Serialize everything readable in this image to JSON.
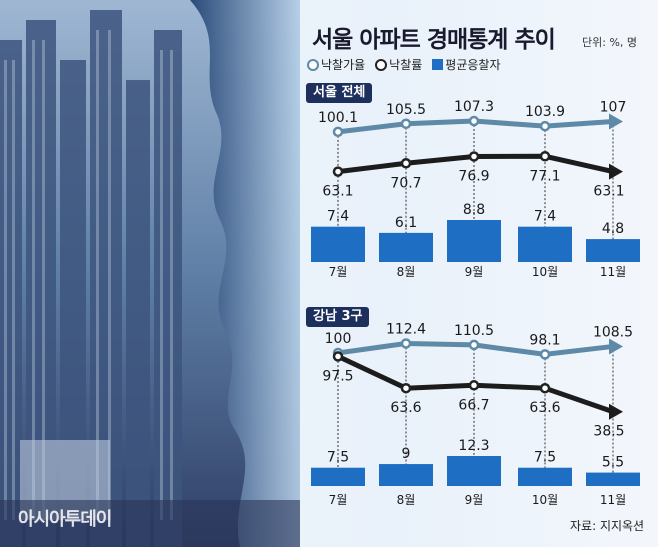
{
  "title": "서울 아파트 경매통계 추이",
  "unit": "단위: %, 명",
  "legend": {
    "sale_rate": "낙찰가율",
    "win_rate": "낙찰률",
    "bidders": "평균응찰자"
  },
  "source": "자료: 지지옥션",
  "logo": "아시아투데이",
  "colors": {
    "sale_rate": "#5e8aa8",
    "win_rate": "#1c1c1c",
    "bidders": "#1e6fc4",
    "label_bg": "#1d2f5c"
  },
  "chart_data": [
    {
      "type": "line+bar",
      "panel": "서울 전체",
      "categories": [
        "7월",
        "8월",
        "9월",
        "10월",
        "11월"
      ],
      "series": [
        {
          "name": "낙찰가율",
          "values": [
            100.1,
            105.5,
            107.3,
            103.9,
            107
          ],
          "labels": [
            "100.1",
            "105.5",
            "107.3",
            "103.9",
            "107"
          ]
        },
        {
          "name": "낙찰률",
          "values": [
            63.1,
            70.7,
            76.9,
            77.1,
            63.1
          ],
          "labels": [
            "63.1",
            "70.7",
            "76.9",
            "77.1",
            "63.1"
          ]
        },
        {
          "name": "평균응찰자",
          "values": [
            7.4,
            6.1,
            8.8,
            7.4,
            4.8
          ],
          "labels": [
            "7.4",
            "6.1",
            "8.8",
            "7.4",
            "4.8"
          ]
        }
      ]
    },
    {
      "type": "line+bar",
      "panel": "강남 3구",
      "categories": [
        "7월",
        "8월",
        "9월",
        "10월",
        "11월"
      ],
      "series": [
        {
          "name": "낙찰가율",
          "values": [
            100,
            112.4,
            110.5,
            98.1,
            108.5
          ],
          "labels": [
            "100",
            "112.4",
            "110.5",
            "98.1",
            "108.5"
          ]
        },
        {
          "name": "낙찰률",
          "values": [
            97.5,
            63.6,
            66.7,
            63.6,
            38.5
          ],
          "labels": [
            "97.5",
            "63.6",
            "66.7",
            "63.6",
            "38.5"
          ]
        },
        {
          "name": "평균응찰자",
          "values": [
            7.5,
            9,
            12.3,
            7.5,
            5.5
          ],
          "labels": [
            "7.5",
            "9",
            "12.3",
            "7.5",
            "5.5"
          ]
        }
      ]
    }
  ]
}
